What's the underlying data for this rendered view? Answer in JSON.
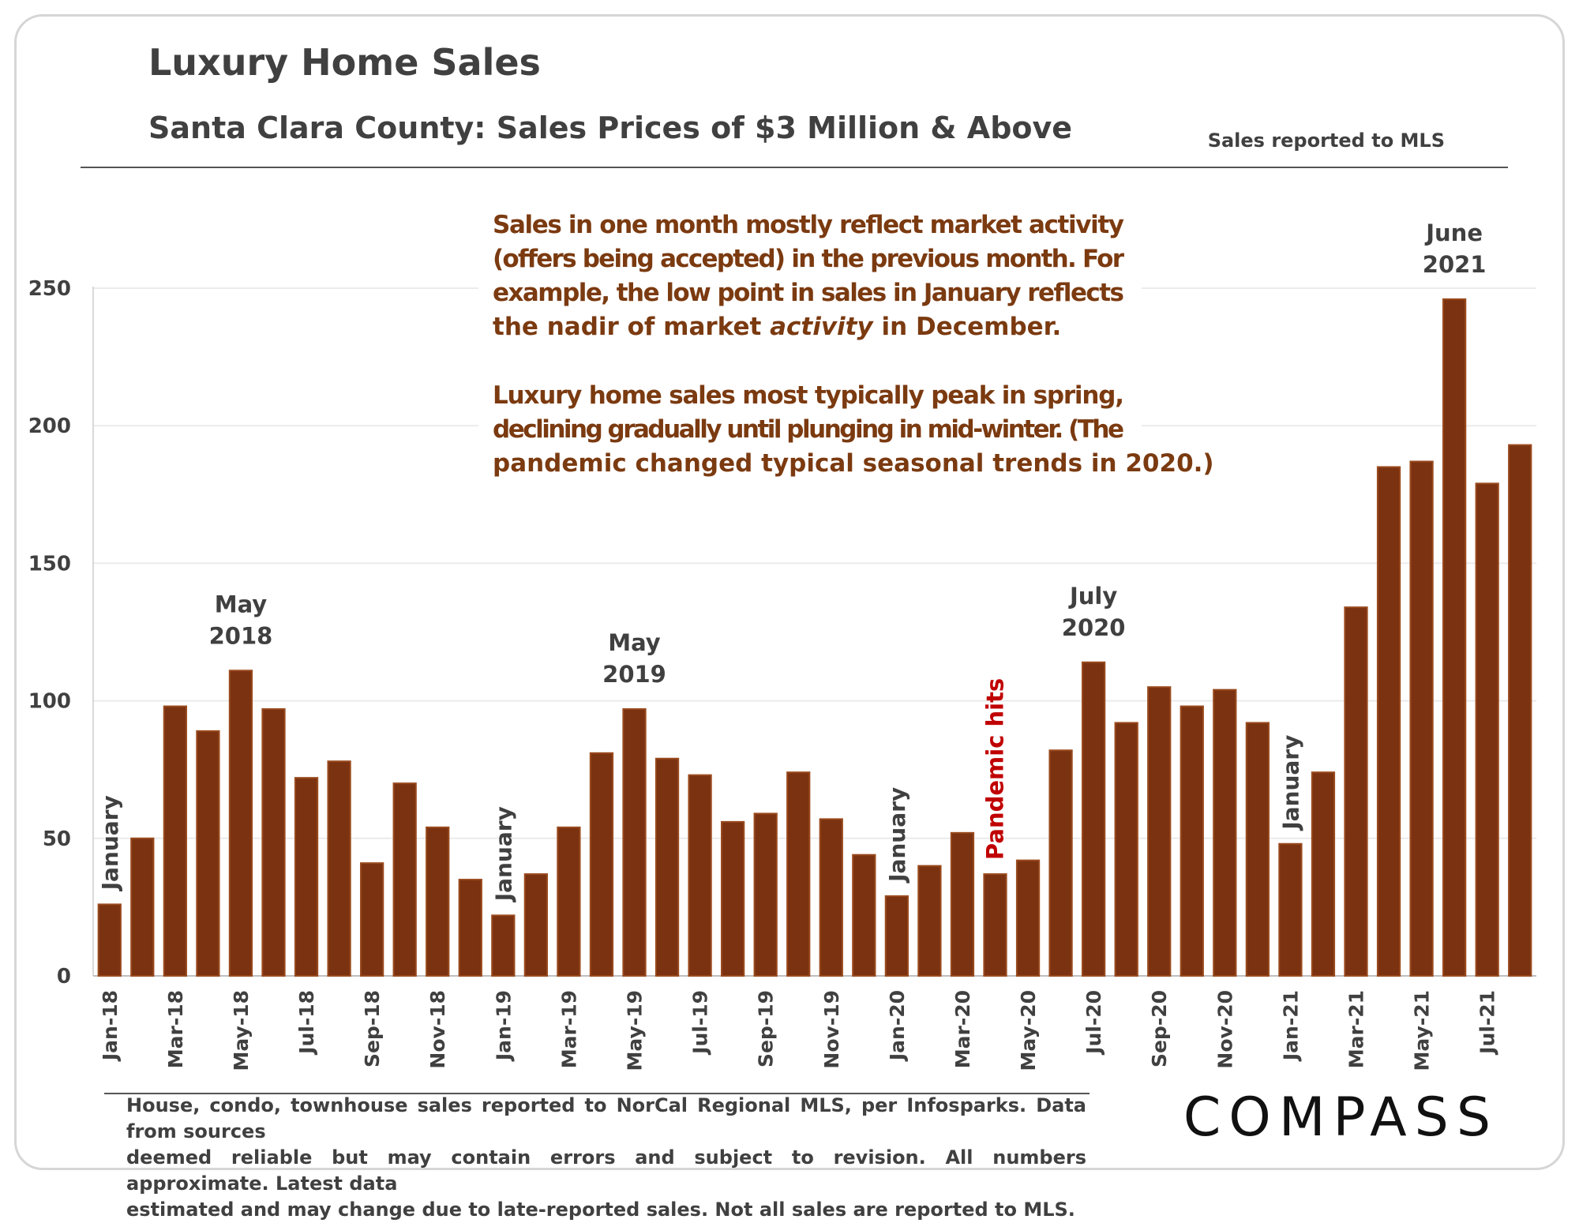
{
  "header": {
    "title": "Luxury Home Sales",
    "subtitle": "Santa Clara County: Sales Prices of $3 Million & Above",
    "source_note": "Sales reported to MLS"
  },
  "annotation": {
    "para1_lines": [
      "Sales in one month mostly reflect market activity",
      "(offers being accepted) in the previous month. For",
      "example, the low point in sales in January reflects"
    ],
    "para1_last_prefix": "the nadir of market ",
    "para1_last_italic": "activity",
    "para1_last_suffix": " in December.",
    "para2_lines": [
      "Luxury home sales most typically peak in spring,",
      "declining gradually until plunging in mid-winter. (The",
      "pandemic changed typical seasonal trends in 2020.)"
    ]
  },
  "footer": {
    "lines": [
      "House, condo, townhouse sales reported to NorCal Regional MLS, per Infosparks. Data from sources",
      "deemed reliable but may contain errors and subject to revision. All numbers approximate. Latest data",
      "estimated and may change due to late-reported sales. Not all sales are reported to MLS."
    ],
    "logo": "COMPASS"
  },
  "colors": {
    "bar": "#7B3210",
    "bar_highlight": "#9A4A1E",
    "text": "#404040",
    "annotation_text": "#7B3A10",
    "pandemic_text": "#C00000",
    "grid": "#ebebeb"
  },
  "chart_data": {
    "type": "bar",
    "ylim": [
      0,
      250
    ],
    "yticks": [
      0,
      50,
      100,
      150,
      200,
      250
    ],
    "grid": true,
    "xlabel": "",
    "ylabel": "",
    "categories": [
      "Jan-18",
      "Feb-18",
      "Mar-18",
      "Apr-18",
      "May-18",
      "Jun-18",
      "Jul-18",
      "Aug-18",
      "Sep-18",
      "Oct-18",
      "Nov-18",
      "Dec-18",
      "Jan-19",
      "Feb-19",
      "Mar-19",
      "Apr-19",
      "May-19",
      "Jun-19",
      "Jul-19",
      "Aug-19",
      "Sep-19",
      "Oct-19",
      "Nov-19",
      "Dec-19",
      "Jan-20",
      "Feb-20",
      "Mar-20",
      "Apr-20",
      "May-20",
      "Jun-20",
      "Jul-20",
      "Aug-20",
      "Sep-20",
      "Oct-20",
      "Nov-20",
      "Dec-20",
      "Jan-21",
      "Feb-21",
      "Mar-21",
      "Apr-21",
      "May-21",
      "Jun-21",
      "Jul-21",
      "Aug-21"
    ],
    "xtick_labels": [
      "Jan-18",
      "",
      "Mar-18",
      "",
      "May-18",
      "",
      "Jul-18",
      "",
      "Sep-18",
      "",
      "Nov-18",
      "",
      "Jan-19",
      "",
      "Mar-19",
      "",
      "May-19",
      "",
      "Jul-19",
      "",
      "Sep-19",
      "",
      "Nov-19",
      "",
      "Jan-20",
      "",
      "Mar-20",
      "",
      "May-20",
      "",
      "Jul-20",
      "",
      "Sep-20",
      "",
      "Nov-20",
      "",
      "Jan-21",
      "",
      "Mar-21",
      "",
      "May-21",
      "",
      "Jul-21",
      ""
    ],
    "values": [
      26,
      50,
      98,
      89,
      111,
      97,
      72,
      78,
      41,
      70,
      54,
      35,
      22,
      37,
      54,
      81,
      97,
      79,
      73,
      56,
      59,
      74,
      57,
      44,
      29,
      40,
      52,
      37,
      42,
      82,
      114,
      92,
      105,
      98,
      104,
      92,
      48,
      74,
      134,
      185,
      187,
      246,
      179,
      193
    ],
    "bar_labels": [
      {
        "index": 0,
        "text": "January",
        "vertical": true
      },
      {
        "index": 4,
        "lines": [
          "May",
          "2018"
        ]
      },
      {
        "index": 12,
        "text": "January",
        "vertical": true
      },
      {
        "index": 16,
        "lines": [
          "May",
          "2019"
        ]
      },
      {
        "index": 24,
        "text": "January",
        "vertical": true
      },
      {
        "index": 27,
        "text": "Pandemic hits",
        "vertical": true,
        "highlight": true
      },
      {
        "index": 30,
        "lines": [
          "July",
          "2020"
        ]
      },
      {
        "index": 36,
        "text": "January",
        "vertical": true
      },
      {
        "index": 41,
        "lines": [
          "June",
          "2021"
        ]
      }
    ]
  }
}
